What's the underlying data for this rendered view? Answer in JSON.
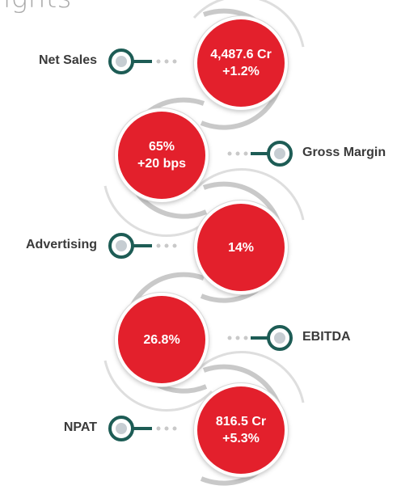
{
  "heading": "lights",
  "colors": {
    "accent": "#e3202c",
    "connector": "#1d5c55",
    "ring": "#c9c9c9",
    "text": "#3a3a3a"
  },
  "metrics": [
    {
      "label": "Net Sales",
      "value": "4,487.6 Cr",
      "change": "+1.2%"
    },
    {
      "label": "Gross Margin",
      "value": "65%",
      "change": "+20 bps"
    },
    {
      "label": "Advertising",
      "value": "14%",
      "change": ""
    },
    {
      "label": "EBITDA",
      "value": "26.8%",
      "change": ""
    },
    {
      "label": "NPAT",
      "value": "816.5 Cr",
      "change": "+5.3%"
    }
  ]
}
